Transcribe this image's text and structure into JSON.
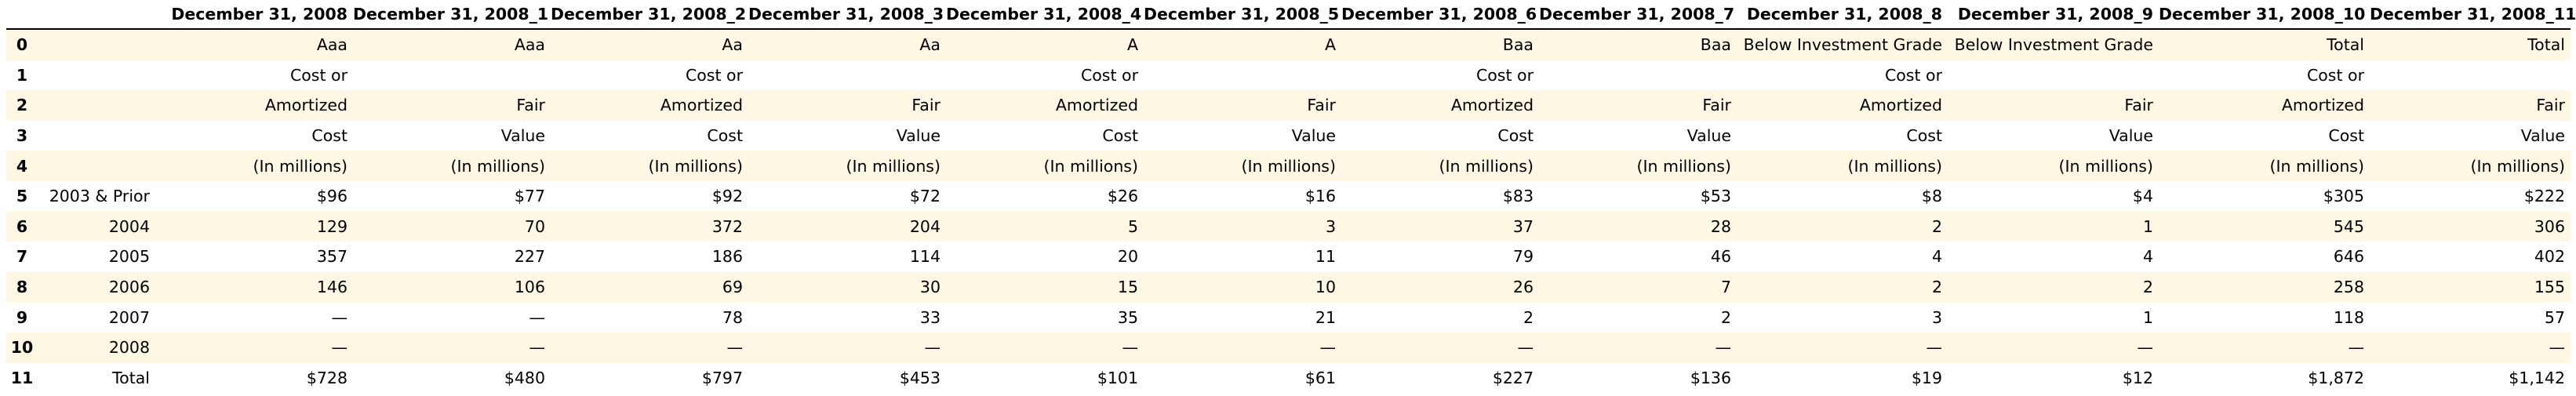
{
  "table": {
    "columns": [
      "",
      "December 31, 2008",
      "December 31, 2008_1",
      "December 31, 2008_2",
      "December 31, 2008_3",
      "December 31, 2008_4",
      "December 31, 2008_5",
      "December 31, 2008_6",
      "December 31, 2008_7",
      "December 31, 2008_8",
      "December 31, 2008_9",
      "December 31, 2008_10",
      "December 31, 2008_11"
    ],
    "rows": [
      {
        "index": "0",
        "cells": [
          "",
          "Aaa",
          "Aaa",
          "Aa",
          "Aa",
          "A",
          "A",
          "Baa",
          "Baa",
          "Below Investment Grade",
          "Below Investment Grade",
          "Total",
          "Total"
        ]
      },
      {
        "index": "1",
        "cells": [
          "",
          "Cost or",
          "",
          "Cost or",
          "",
          "Cost or",
          "",
          "Cost or",
          "",
          "Cost or",
          "",
          "Cost or",
          ""
        ]
      },
      {
        "index": "2",
        "cells": [
          "",
          "Amortized",
          "Fair",
          "Amortized",
          "Fair",
          "Amortized",
          "Fair",
          "Amortized",
          "Fair",
          "Amortized",
          "Fair",
          "Amortized",
          "Fair"
        ]
      },
      {
        "index": "3",
        "cells": [
          "",
          "Cost",
          "Value",
          "Cost",
          "Value",
          "Cost",
          "Value",
          "Cost",
          "Value",
          "Cost",
          "Value",
          "Cost",
          "Value"
        ]
      },
      {
        "index": "4",
        "cells": [
          "",
          "(In millions)",
          "(In millions)",
          "(In millions)",
          "(In millions)",
          "(In millions)",
          "(In millions)",
          "(In millions)",
          "(In millions)",
          "(In millions)",
          "(In millions)",
          "(In millions)",
          "(In millions)"
        ]
      },
      {
        "index": "5",
        "cells": [
          "2003 & Prior",
          "$96",
          "$77",
          "$92",
          "$72",
          "$26",
          "$16",
          "$83",
          "$53",
          "$8",
          "$4",
          "$305",
          "$222"
        ]
      },
      {
        "index": "6",
        "cells": [
          "2004",
          "129",
          "70",
          "372",
          "204",
          "5",
          "3",
          "37",
          "28",
          "2",
          "1",
          "545",
          "306"
        ]
      },
      {
        "index": "7",
        "cells": [
          "2005",
          "357",
          "227",
          "186",
          "114",
          "20",
          "11",
          "79",
          "46",
          "4",
          "4",
          "646",
          "402"
        ]
      },
      {
        "index": "8",
        "cells": [
          "2006",
          "146",
          "106",
          "69",
          "30",
          "15",
          "10",
          "26",
          "7",
          "2",
          "2",
          "258",
          "155"
        ]
      },
      {
        "index": "9",
        "cells": [
          "2007",
          "—",
          "—",
          "78",
          "33",
          "35",
          "21",
          "2",
          "2",
          "3",
          "1",
          "118",
          "57"
        ]
      },
      {
        "index": "10",
        "cells": [
          "2008",
          "—",
          "—",
          "—",
          "—",
          "—",
          "—",
          "—",
          "—",
          "—",
          "—",
          "—",
          "—"
        ]
      },
      {
        "index": "11",
        "cells": [
          "Total",
          "$728",
          "$480",
          "$797",
          "$453",
          "$101",
          "$61",
          "$227",
          "$136",
          "$19",
          "$12",
          "$1,872",
          "$1,142"
        ]
      }
    ]
  }
}
